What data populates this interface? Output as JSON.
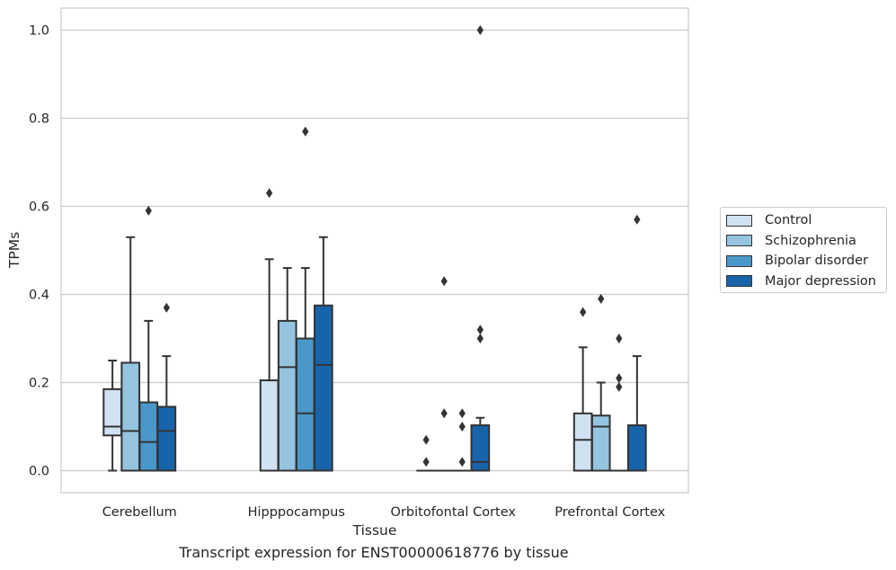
{
  "chart_data": {
    "type": "box",
    "xlabel": "Tissue",
    "ylabel": "TPMs",
    "caption": "Transcript expression for ENST00000618776 by tissue",
    "ylim": [
      -0.05,
      1.05
    ],
    "yticks": [
      "0.0",
      "0.2",
      "0.4",
      "0.6",
      "0.8",
      "1.0"
    ],
    "grid": "horizontal",
    "legend_position": "right",
    "categories": [
      "Cerebellum",
      "Hipppocampus",
      "Orbitofontal Cortex",
      "Prefrontal Cortex"
    ],
    "series": [
      {
        "name": "Control",
        "color": "#d0e1f2",
        "boxes": [
          {
            "min": 0.0,
            "q1": 0.08,
            "median": 0.1,
            "q3": 0.185,
            "max": 0.25,
            "outliers": []
          },
          {
            "min": 0.0,
            "q1": 0.0,
            "median": 0.0,
            "q3": 0.205,
            "max": 0.48,
            "outliers": [
              0.63
            ]
          },
          {
            "min": 0.0,
            "q1": 0.0,
            "median": 0.0,
            "q3": 0.0,
            "max": 0.0,
            "outliers": [
              0.02,
              0.07
            ]
          },
          {
            "min": 0.0,
            "q1": 0.0,
            "median": 0.07,
            "q3": 0.13,
            "max": 0.28,
            "outliers": [
              0.36
            ]
          }
        ]
      },
      {
        "name": "Schizophrenia",
        "color": "#94c4df",
        "boxes": [
          {
            "min": 0.0,
            "q1": 0.0,
            "median": 0.09,
            "q3": 0.245,
            "max": 0.53,
            "outliers": []
          },
          {
            "min": 0.0,
            "q1": 0.0,
            "median": 0.235,
            "q3": 0.34,
            "max": 0.46,
            "outliers": []
          },
          {
            "min": 0.0,
            "q1": 0.0,
            "median": 0.0,
            "q3": 0.0,
            "max": 0.0,
            "outliers": [
              0.13,
              0.43
            ]
          },
          {
            "min": 0.0,
            "q1": 0.0,
            "median": 0.1,
            "q3": 0.125,
            "max": 0.2,
            "outliers": [
              0.39
            ]
          }
        ]
      },
      {
        "name": "Bipolar disorder",
        "color": "#4a98c9",
        "boxes": [
          {
            "min": 0.0,
            "q1": 0.0,
            "median": 0.065,
            "q3": 0.155,
            "max": 0.34,
            "outliers": [
              0.59
            ]
          },
          {
            "min": 0.0,
            "q1": 0.0,
            "median": 0.13,
            "q3": 0.3,
            "max": 0.46,
            "outliers": [
              0.77
            ]
          },
          {
            "min": 0.0,
            "q1": 0.0,
            "median": 0.0,
            "q3": 0.0,
            "max": 0.0,
            "outliers": [
              0.02,
              0.1,
              0.13
            ]
          },
          {
            "min": 0.0,
            "q1": 0.0,
            "median": 0.0,
            "q3": 0.0,
            "max": 0.0,
            "outliers": [
              0.19,
              0.21,
              0.3
            ]
          }
        ]
      },
      {
        "name": "Major depression",
        "color": "#1764ab",
        "boxes": [
          {
            "min": 0.0,
            "q1": 0.0,
            "median": 0.09,
            "q3": 0.145,
            "max": 0.26,
            "outliers": [
              0.37
            ]
          },
          {
            "min": 0.0,
            "q1": 0.0,
            "median": 0.24,
            "q3": 0.375,
            "max": 0.53,
            "outliers": []
          },
          {
            "min": 0.0,
            "q1": 0.0,
            "median": 0.02,
            "q3": 0.103,
            "max": 0.12,
            "outliers": [
              0.3,
              0.32,
              1.0
            ]
          },
          {
            "min": 0.0,
            "q1": 0.0,
            "median": 0.0,
            "q3": 0.103,
            "max": 0.26,
            "outliers": [
              0.57
            ]
          }
        ]
      }
    ]
  }
}
